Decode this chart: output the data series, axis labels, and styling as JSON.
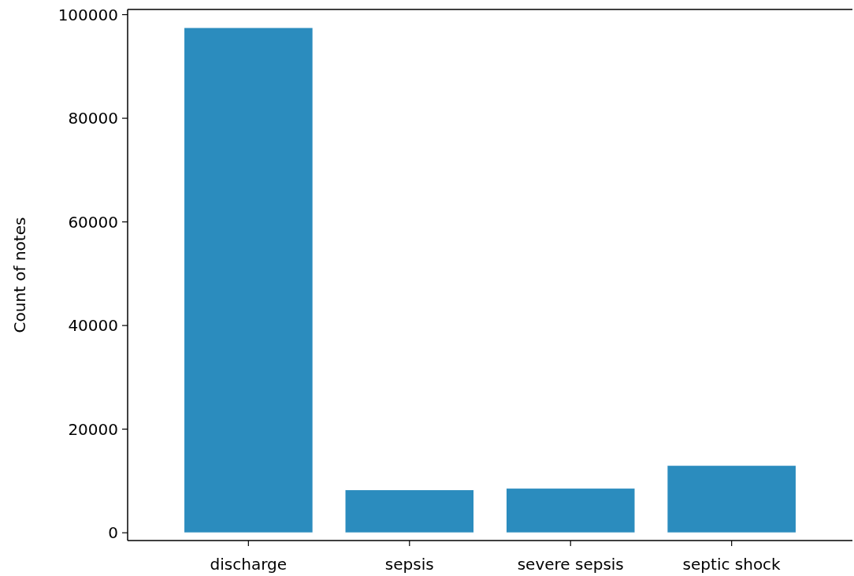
{
  "chart_data": {
    "type": "bar",
    "ylabel": "Count of notes",
    "categories": [
      "discharge",
      "sepsis",
      "severe sepsis",
      "septic shock"
    ],
    "values": [
      97500,
      8300,
      8600,
      13000
    ],
    "color": "#2b8cbe",
    "ylim": [
      -1500,
      101000
    ],
    "yticks": [
      0,
      20000,
      40000,
      60000,
      80000,
      100000
    ],
    "grid": false
  }
}
